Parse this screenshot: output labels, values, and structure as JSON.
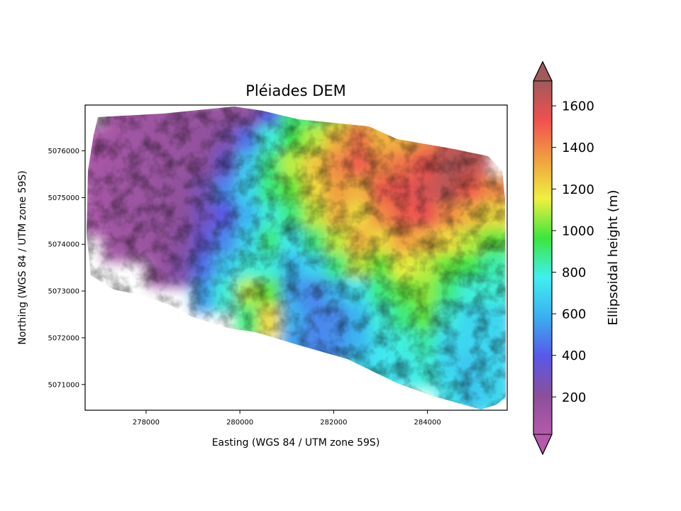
{
  "chart_data": {
    "type": "heatmap",
    "title": "Pléiades DEM",
    "xlabel": "Easting (WGS 84 / UTM zone 59S)",
    "ylabel": "Northing (WGS 84 / UTM zone 59S)",
    "xlim": [
      276700,
      285700
    ],
    "ylim": [
      5070450,
      5076980
    ],
    "xticks": [
      278000,
      280000,
      282000,
      284000
    ],
    "xtick_labels": [
      "278000",
      "280000",
      "282000",
      "284000"
    ],
    "yticks": [
      5071000,
      5072000,
      5073000,
      5074000,
      5075000,
      5076000
    ],
    "ytick_labels": [
      "5071000",
      "5072000",
      "5073000",
      "5074000",
      "5075000",
      "5076000"
    ],
    "grid": false,
    "colorbar": {
      "label": "Ellipsoidal height (m)",
      "range": [
        20,
        1720
      ],
      "ticks": [
        200,
        400,
        600,
        800,
        1000,
        1200,
        1400,
        1600
      ],
      "tick_labels": [
        "200",
        "400",
        "600",
        "800",
        "1000",
        "1200",
        "1400",
        "1600"
      ],
      "extend": "both",
      "colormap": "rainbow-with-hillshade",
      "colors": [
        "#b45aaa",
        "#8a4f9a",
        "#5858e8",
        "#3ab0f0",
        "#40f0f0",
        "#3ce63c",
        "#f0f040",
        "#f0a040",
        "#f05050",
        "#a05a5a"
      ]
    },
    "values": [
      [
        null,
        60,
        100,
        130,
        140,
        150,
        160,
        200,
        400,
        900,
        900,
        1100,
        1300,
        1200,
        1200,
        1300,
        1400,
        1500,
        null
      ],
      [
        60,
        90,
        120,
        140,
        150,
        170,
        250,
        450,
        800,
        950,
        1100,
        1300,
        1450,
        1300,
        1300,
        1400,
        1600,
        1700,
        null
      ],
      [
        80,
        100,
        130,
        140,
        160,
        200,
        350,
        650,
        900,
        1100,
        1250,
        1400,
        1500,
        1400,
        1450,
        1550,
        1680,
        1650,
        null
      ],
      [
        90,
        110,
        130,
        150,
        180,
        280,
        500,
        700,
        900,
        1000,
        1200,
        1350,
        1300,
        1500,
        1550,
        1600,
        1650,
        1500,
        1400
      ],
      [
        70,
        120,
        140,
        160,
        200,
        300,
        400,
        600,
        800,
        900,
        1100,
        1300,
        1200,
        1400,
        1500,
        1550,
        1400,
        1300,
        1200
      ],
      [
        null,
        110,
        130,
        150,
        220,
        350,
        500,
        700,
        900,
        750,
        900,
        1100,
        1300,
        1200,
        1350,
        1300,
        1200,
        1100,
        1000
      ],
      [
        null,
        null,
        null,
        140,
        250,
        450,
        650,
        800,
        800,
        600,
        700,
        900,
        1100,
        1000,
        1150,
        1100,
        1000,
        950,
        850
      ],
      [
        null,
        null,
        null,
        null,
        null,
        550,
        800,
        1100,
        1000,
        550,
        500,
        600,
        750,
        900,
        1000,
        1050,
        900,
        800,
        800
      ],
      [
        null,
        null,
        null,
        null,
        null,
        null,
        null,
        900,
        1200,
        600,
        500,
        500,
        600,
        800,
        900,
        1000,
        800,
        700,
        700
      ],
      [
        null,
        null,
        null,
        null,
        null,
        null,
        null,
        null,
        null,
        550,
        500,
        520,
        600,
        750,
        800,
        850,
        700,
        700,
        700
      ],
      [
        null,
        null,
        null,
        null,
        null,
        null,
        null,
        null,
        null,
        null,
        null,
        null,
        700,
        750,
        750,
        800,
        700,
        650,
        700
      ],
      [
        null,
        null,
        null,
        null,
        null,
        null,
        null,
        null,
        null,
        null,
        null,
        null,
        null,
        null,
        null,
        null,
        750,
        650,
        700
      ]
    ]
  }
}
